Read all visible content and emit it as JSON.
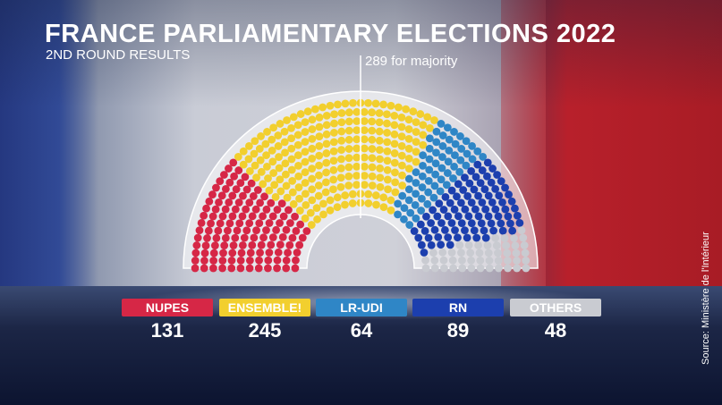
{
  "header": {
    "title": "FRANCE PARLIAMENTARY ELECTIONS 2022",
    "subtitle": "2ND ROUND RESULTS",
    "majority_label": "289 for majority"
  },
  "source": "Source: Ministère de l'Intérieur",
  "colors": {
    "nupes": "#d62746",
    "ensemble": "#f2cf2e",
    "lrudi": "#2f86c6",
    "rn": "#1c3fae",
    "others": "#c9cbd1"
  },
  "chart_data": {
    "type": "hemicycle",
    "title": "FRANCE PARLIAMENTARY ELECTIONS 2022",
    "subtitle": "2ND ROUND RESULTS",
    "total_seats": 577,
    "majority": 289,
    "parties": [
      {
        "name": "NUPES",
        "seats": 131,
        "color": "#d62746"
      },
      {
        "name": "ENSEMBLE!",
        "seats": 245,
        "color": "#f2cf2e"
      },
      {
        "name": "LR-UDI",
        "seats": 64,
        "color": "#2f86c6"
      },
      {
        "name": "RN",
        "seats": 89,
        "color": "#1c3fae"
      },
      {
        "name": "OTHERS",
        "seats": 48,
        "color": "#c9cbd1"
      }
    ]
  }
}
